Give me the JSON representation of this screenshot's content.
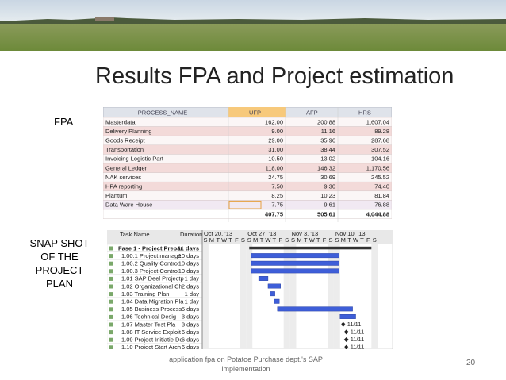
{
  "title": "Results FPA and Project estimation",
  "fpa_label": "FPA",
  "snapshot_label": "SNAP SHOT OF THE PROJECT PLAN",
  "table": {
    "header": [
      "PROCESS_NAME",
      "UFP",
      "AFP",
      "HRS"
    ],
    "rows": [
      [
        "Masterdata",
        "162.00",
        "200.88",
        "1,607.04"
      ],
      [
        "Delivery Planning",
        "9.00",
        "11.16",
        "89.28"
      ],
      [
        "Goods Receipt",
        "29.00",
        "35.96",
        "287.68"
      ],
      [
        "Transportation",
        "31.00",
        "38.44",
        "307.52"
      ],
      [
        "Invoicing Logistic Part",
        "10.50",
        "13.02",
        "104.16"
      ],
      [
        "General Ledger",
        "118.00",
        "146.32",
        "1,170.56"
      ],
      [
        "NAK services",
        "24.75",
        "30.69",
        "245.52"
      ],
      [
        "HPA reporting",
        "7.50",
        "9.30",
        "74.40"
      ],
      [
        "Plantum",
        "8.25",
        "10.23",
        "81.84"
      ],
      [
        "Data Ware House",
        "7.75",
        "9.61",
        "76.88"
      ]
    ],
    "total": [
      "",
      "407.75",
      "505.61",
      "4,044.88"
    ]
  },
  "gantt": {
    "columns": [
      "Task Name",
      "Duration"
    ],
    "weeks": [
      "Oct 20, '13",
      "Oct 27, '13",
      "Nov 3, '13",
      "Nov 10, '13"
    ],
    "days": [
      "S",
      "M",
      "T",
      "W",
      "T",
      "F",
      "S"
    ],
    "tasks": [
      [
        "Fase 1 - Project Prepar",
        "11 days"
      ],
      [
        "1.00.1 Project manager",
        "10 days"
      ],
      [
        "1.00.2 Quality Control",
        "10 days"
      ],
      [
        "1.00.3 Project Control",
        "10 days"
      ],
      [
        "1.01 SAP Deel Projectp",
        "1 day"
      ],
      [
        "1.02 Organizational Ch",
        "2 days"
      ],
      [
        "1.03 Training Plan",
        "1 day"
      ],
      [
        "1.04 Data Migration Pla",
        "1 day"
      ],
      [
        "1.05 Business Process",
        "5 days"
      ],
      [
        "1.06 Technical Desig",
        "3 days"
      ],
      [
        "1.07 Master Test Pla",
        "3 days"
      ],
      [
        "1.08 IT Service Exploit",
        "6 days"
      ],
      [
        "1.09 Project Initiatie Do",
        "6 days"
      ],
      [
        "1.10 Project Start Arch",
        "6 days"
      ]
    ],
    "milestone_label": "11/11"
  },
  "footer": {
    "caption": "application fpa on Potatoe Purchase dept.'s SAP implementation",
    "page": "20"
  }
}
